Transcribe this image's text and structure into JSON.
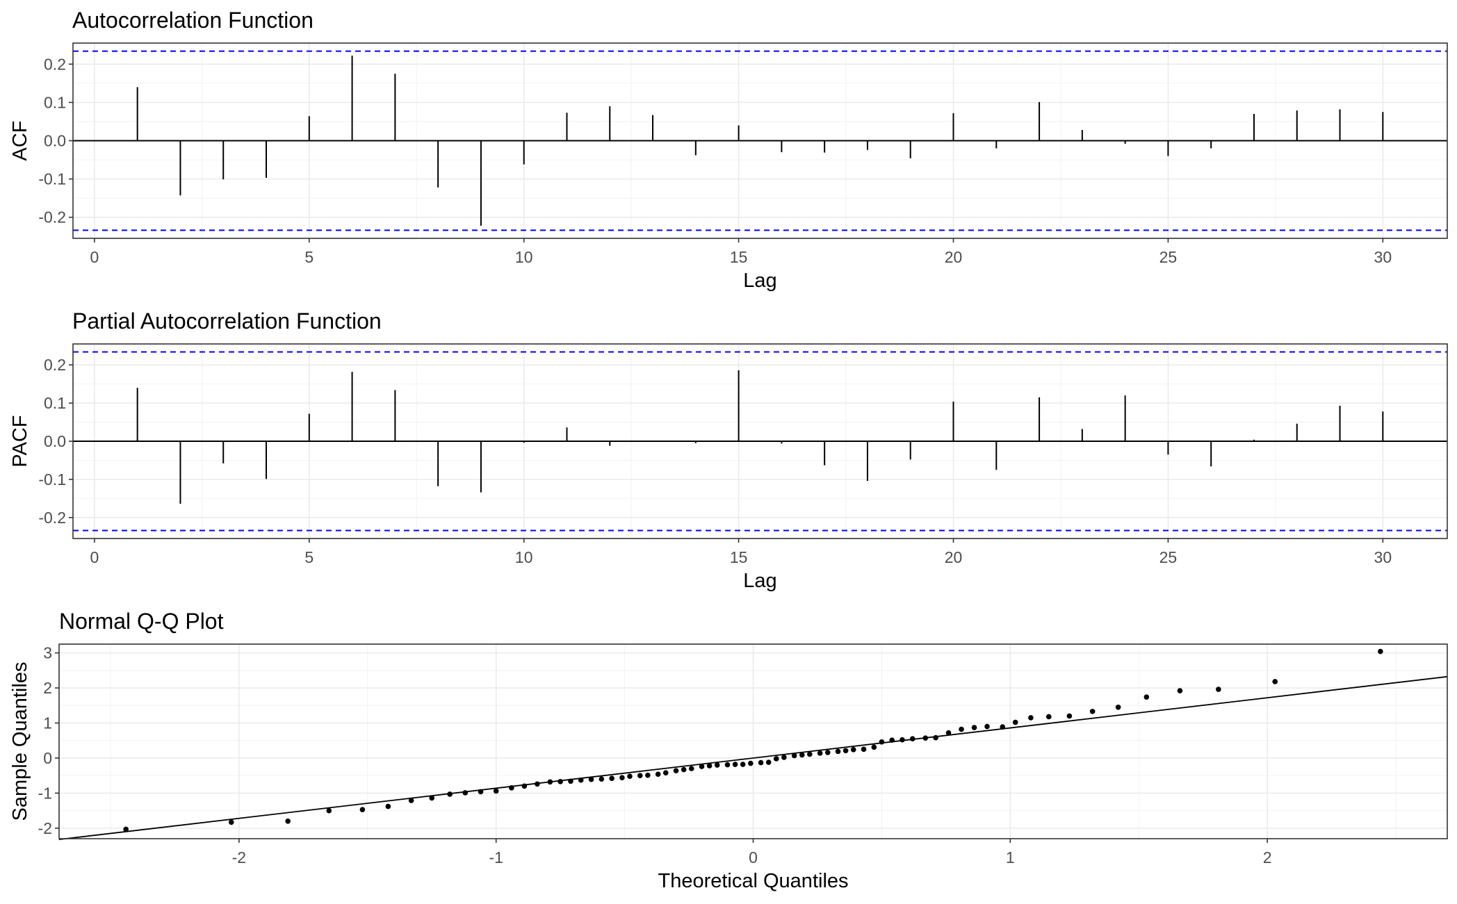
{
  "chart_data": [
    {
      "type": "bar",
      "title": "Autocorrelation Function",
      "xlabel": "Lag",
      "ylabel": "ACF",
      "xlim": [
        -0.5,
        31.5
      ],
      "ylim": [
        -0.255,
        0.255
      ],
      "x_ticks": [
        0,
        5,
        10,
        15,
        20,
        25,
        30
      ],
      "y_ticks": [
        -0.2,
        -0.1,
        0.0,
        0.1,
        0.2
      ],
      "y_tick_labels": [
        "-0.2",
        "-0.1",
        "0.0",
        "0.1",
        "0.2"
      ],
      "confidence_bound": 0.234,
      "confidence_color": "#0000ff",
      "grid": true,
      "lags": [
        1,
        2,
        3,
        4,
        5,
        6,
        7,
        8,
        9,
        10,
        11,
        12,
        13,
        14,
        15,
        16,
        17,
        18,
        19,
        20,
        21,
        22,
        23,
        24,
        25,
        26,
        27,
        28,
        29,
        30
      ],
      "values": [
        0.14,
        -0.143,
        -0.101,
        -0.097,
        0.064,
        0.222,
        0.175,
        -0.122,
        -0.222,
        -0.062,
        0.073,
        0.09,
        0.067,
        -0.038,
        0.04,
        -0.03,
        -0.031,
        -0.024,
        -0.046,
        0.072,
        -0.02,
        0.101,
        0.028,
        -0.008,
        -0.04,
        -0.02,
        0.07,
        0.079,
        0.082,
        0.075
      ]
    },
    {
      "type": "bar",
      "title": "Partial Autocorrelation Function",
      "xlabel": "Lag",
      "ylabel": "PACF",
      "xlim": [
        -0.5,
        31.5
      ],
      "ylim": [
        -0.255,
        0.255
      ],
      "x_ticks": [
        0,
        5,
        10,
        15,
        20,
        25,
        30
      ],
      "y_ticks": [
        -0.2,
        -0.1,
        0.0,
        0.1,
        0.2
      ],
      "y_tick_labels": [
        "-0.2",
        "-0.1",
        "0.0",
        "0.1",
        "0.2"
      ],
      "confidence_bound": 0.234,
      "confidence_color": "#0000ff",
      "grid": true,
      "lags": [
        1,
        2,
        3,
        4,
        5,
        6,
        7,
        8,
        9,
        10,
        11,
        12,
        13,
        14,
        15,
        16,
        17,
        18,
        19,
        20,
        21,
        22,
        23,
        24,
        25,
        26,
        27,
        28,
        29,
        30
      ],
      "values": [
        0.14,
        -0.164,
        -0.058,
        -0.099,
        0.072,
        0.182,
        0.134,
        -0.118,
        -0.134,
        -0.004,
        0.036,
        -0.012,
        0.0,
        -0.005,
        0.186,
        -0.006,
        -0.063,
        -0.104,
        -0.048,
        0.104,
        -0.075,
        0.115,
        0.032,
        0.12,
        -0.035,
        -0.066,
        0.004,
        0.046,
        0.093,
        0.078
      ]
    },
    {
      "type": "scatter",
      "title": "Normal Q-Q Plot",
      "xlabel": "Theoretical Quantiles",
      "ylabel": "Sample Quantiles",
      "xlim": [
        -2.7,
        2.7
      ],
      "ylim": [
        -2.3,
        3.25
      ],
      "x_ticks": [
        -2,
        -1,
        0,
        1,
        2
      ],
      "y_ticks": [
        -2,
        -1,
        0,
        1,
        2,
        3
      ],
      "grid": true,
      "reference_line": {
        "intercept": 0.0,
        "slope": 0.86
      },
      "points": [
        [
          -2.44,
          -2.03
        ],
        [
          -2.03,
          -1.83
        ],
        [
          -1.81,
          -1.8
        ],
        [
          -1.65,
          -1.5
        ],
        [
          -1.52,
          -1.47
        ],
        [
          -1.42,
          -1.38
        ],
        [
          -1.33,
          -1.21
        ],
        [
          -1.25,
          -1.14
        ],
        [
          -1.18,
          -1.03
        ],
        [
          -1.12,
          -0.99
        ],
        [
          -1.06,
          -0.96
        ],
        [
          -1.0,
          -0.94
        ],
        [
          -0.94,
          -0.85
        ],
        [
          -0.89,
          -0.8
        ],
        [
          -0.84,
          -0.74
        ],
        [
          -0.79,
          -0.68
        ],
        [
          -0.75,
          -0.67
        ],
        [
          -0.71,
          -0.66
        ],
        [
          -0.67,
          -0.63
        ],
        [
          -0.63,
          -0.61
        ],
        [
          -0.59,
          -0.6
        ],
        [
          -0.55,
          -0.58
        ],
        [
          -0.51,
          -0.56
        ],
        [
          -0.48,
          -0.52
        ],
        [
          -0.44,
          -0.5
        ],
        [
          -0.41,
          -0.49
        ],
        [
          -0.37,
          -0.46
        ],
        [
          -0.34,
          -0.42
        ],
        [
          -0.3,
          -0.36
        ],
        [
          -0.27,
          -0.33
        ],
        [
          -0.24,
          -0.3
        ],
        [
          -0.2,
          -0.24
        ],
        [
          -0.17,
          -0.22
        ],
        [
          -0.14,
          -0.2
        ],
        [
          -0.1,
          -0.19
        ],
        [
          -0.07,
          -0.18
        ],
        [
          -0.04,
          -0.18
        ],
        [
          -0.01,
          -0.15
        ],
        [
          0.03,
          -0.13
        ],
        [
          0.06,
          -0.12
        ],
        [
          0.09,
          -0.02
        ],
        [
          0.12,
          0.02
        ],
        [
          0.16,
          0.07
        ],
        [
          0.19,
          0.09
        ],
        [
          0.22,
          0.11
        ],
        [
          0.26,
          0.14
        ],
        [
          0.29,
          0.16
        ],
        [
          0.33,
          0.19
        ],
        [
          0.36,
          0.21
        ],
        [
          0.39,
          0.24
        ],
        [
          0.43,
          0.25
        ],
        [
          0.47,
          0.31
        ],
        [
          0.5,
          0.46
        ],
        [
          0.54,
          0.51
        ],
        [
          0.58,
          0.52
        ],
        [
          0.62,
          0.55
        ],
        [
          0.67,
          0.57
        ],
        [
          0.71,
          0.58
        ],
        [
          0.76,
          0.72
        ],
        [
          0.81,
          0.82
        ],
        [
          0.86,
          0.87
        ],
        [
          0.91,
          0.9
        ],
        [
          0.97,
          0.89
        ],
        [
          1.02,
          1.02
        ],
        [
          1.08,
          1.15
        ],
        [
          1.15,
          1.18
        ],
        [
          1.23,
          1.2
        ],
        [
          1.32,
          1.33
        ],
        [
          1.42,
          1.45
        ],
        [
          1.53,
          1.74
        ],
        [
          1.66,
          1.92
        ],
        [
          1.81,
          1.96
        ],
        [
          2.03,
          2.18
        ],
        [
          2.44,
          3.04
        ]
      ]
    }
  ]
}
